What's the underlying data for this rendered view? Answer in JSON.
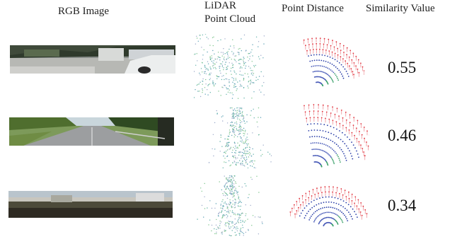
{
  "headers": {
    "rgb": "RGB Image",
    "lidar_line1": "LiDAR",
    "lidar_line2": "Point Cloud",
    "distance": "Point Distance",
    "similarity": "Similarity Value"
  },
  "rows": [
    {
      "similarity": "0.55"
    },
    {
      "similarity": "0.46"
    },
    {
      "similarity": "0.34"
    }
  ],
  "colors": {
    "near": "#e0323c",
    "far": "#2b3fa8",
    "mid": "#3aa06a",
    "cloud": "#5fb0a8"
  }
}
